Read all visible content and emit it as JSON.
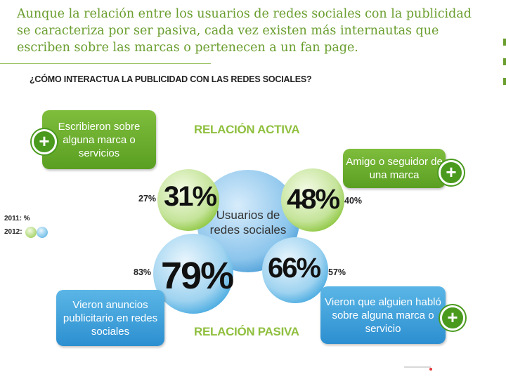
{
  "intro_text": "Aunque la relación entre los usuarios de redes sociales con la publicidad se caracteriza por ser pasiva, cada vez existen más internautas que escriben sobre las marcas o pertenecen a un fan page.",
  "question": "¿CÓMO INTERACTUA LA PUBLICIDAD CON LAS REDES SOCIALES?",
  "section_active": "RELACIÓN ACTIVA",
  "section_passive": "RELACIÓN PASIVA",
  "center_label": "Usuarios de redes sociales",
  "legend": {
    "label_2011": "2011: %",
    "label_2012": "2012:"
  },
  "colors": {
    "green": "#8dc63f",
    "blue": "#45a9e0",
    "title_green": "#6a9e2e"
  },
  "items": [
    {
      "label": "Escribieron sobre alguna marca o servicios",
      "value_2011": "27%",
      "value_2012": "31%",
      "relation": "activa"
    },
    {
      "label": "Amigo o seguidor de una marca",
      "value_2011": "40%",
      "value_2012": "48%",
      "relation": "activa"
    },
    {
      "label": "Vieron anuncios publicitario en redes sociales",
      "value_2011": "83%",
      "value_2012": "79%",
      "relation": "pasiva"
    },
    {
      "label": "Vieron que alguien habló sobre alguna marca o servicio",
      "value_2011": "57%",
      "value_2012": "66%",
      "relation": "pasiva"
    }
  ],
  "plus_symbol": "+"
}
